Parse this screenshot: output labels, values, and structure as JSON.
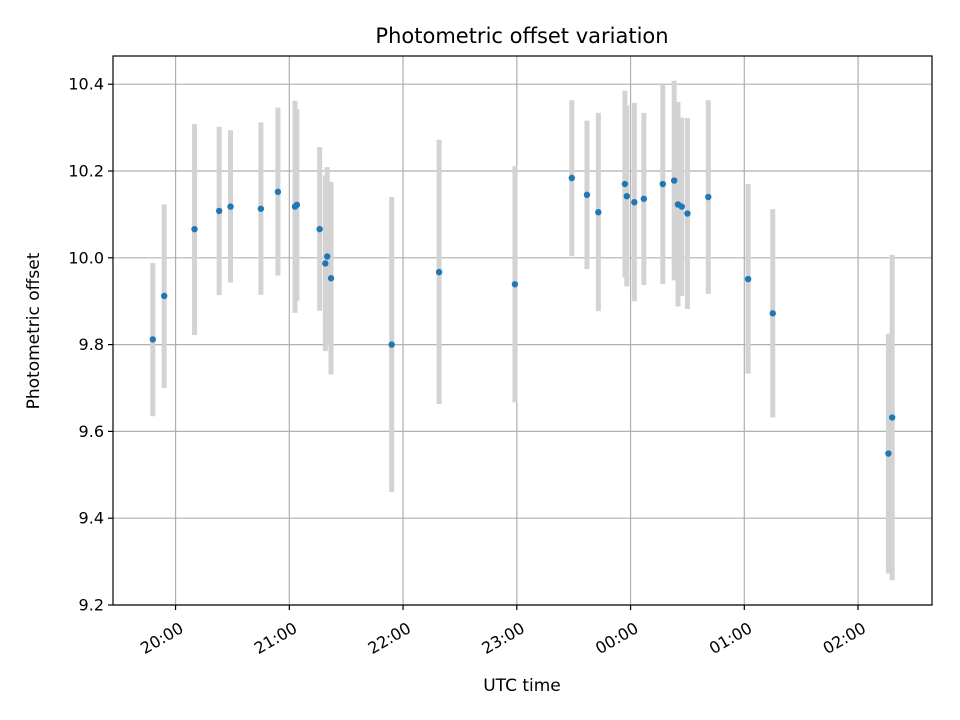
{
  "chart_data": {
    "type": "scatter",
    "title": "Photometric offset variation",
    "xlabel": "UTC time",
    "ylabel": "Photometric offset",
    "xlim": [
      "19:27",
      "26:39"
    ],
    "ylim": [
      9.2,
      10.465
    ],
    "grid": true,
    "x_ticks": [
      "20:00",
      "21:00",
      "22:00",
      "23:00",
      "00:00",
      "01:00",
      "02:00"
    ],
    "y_ticks": [
      "9.2",
      "9.4",
      "9.6",
      "9.8",
      "10.0",
      "10.2",
      "10.4"
    ],
    "marker_color": "#1f77b4",
    "errorbar_color": "#d3d3d3",
    "points": [
      {
        "t": "19:48",
        "y": 9.812,
        "lo": 9.635,
        "hi": 9.988
      },
      {
        "t": "19:54",
        "y": 9.912,
        "lo": 9.7,
        "hi": 10.123
      },
      {
        "t": "20:10",
        "y": 10.066,
        "lo": 9.822,
        "hi": 10.308
      },
      {
        "t": "20:23",
        "y": 10.108,
        "lo": 9.914,
        "hi": 10.302
      },
      {
        "t": "20:29",
        "y": 10.118,
        "lo": 9.943,
        "hi": 10.294
      },
      {
        "t": "20:45",
        "y": 10.113,
        "lo": 9.915,
        "hi": 10.312
      },
      {
        "t": "20:54",
        "y": 10.152,
        "lo": 9.959,
        "hi": 10.346
      },
      {
        "t": "21:03",
        "y": 10.118,
        "lo": 9.873,
        "hi": 10.362
      },
      {
        "t": "21:04",
        "y": 10.122,
        "lo": 9.901,
        "hi": 10.343
      },
      {
        "t": "21:16",
        "y": 10.066,
        "lo": 9.878,
        "hi": 10.255
      },
      {
        "t": "21:19",
        "y": 9.987,
        "lo": 9.785,
        "hi": 10.19
      },
      {
        "t": "21:20",
        "y": 10.003,
        "lo": 9.797,
        "hi": 10.209
      },
      {
        "t": "21:22",
        "y": 9.953,
        "lo": 9.731,
        "hi": 10.175
      },
      {
        "t": "21:54",
        "y": 9.8,
        "lo": 9.46,
        "hi": 10.14
      },
      {
        "t": "22:19",
        "y": 9.967,
        "lo": 9.663,
        "hi": 10.272
      },
      {
        "t": "22:59",
        "y": 9.939,
        "lo": 9.667,
        "hi": 10.211
      },
      {
        "t": "23:29",
        "y": 10.184,
        "lo": 10.004,
        "hi": 10.363
      },
      {
        "t": "23:37",
        "y": 10.145,
        "lo": 9.974,
        "hi": 10.316
      },
      {
        "t": "23:43",
        "y": 10.105,
        "lo": 9.877,
        "hi": 10.334
      },
      {
        "t": "23:57",
        "y": 10.17,
        "lo": 9.955,
        "hi": 10.385
      },
      {
        "t": "23:58",
        "y": 10.142,
        "lo": 9.934,
        "hi": 10.351
      },
      {
        "t": "24:02",
        "y": 10.128,
        "lo": 9.9,
        "hi": 10.357
      },
      {
        "t": "24:07",
        "y": 10.136,
        "lo": 9.937,
        "hi": 10.334
      },
      {
        "t": "24:17",
        "y": 10.17,
        "lo": 9.94,
        "hi": 10.4
      },
      {
        "t": "24:23",
        "y": 10.178,
        "lo": 9.948,
        "hi": 10.408
      },
      {
        "t": "24:25",
        "y": 10.123,
        "lo": 9.888,
        "hi": 10.359
      },
      {
        "t": "24:27",
        "y": 10.118,
        "lo": 9.912,
        "hi": 10.323
      },
      {
        "t": "24:30",
        "y": 10.102,
        "lo": 9.882,
        "hi": 10.322
      },
      {
        "t": "24:41",
        "y": 10.14,
        "lo": 9.917,
        "hi": 10.363
      },
      {
        "t": "25:02",
        "y": 9.951,
        "lo": 9.733,
        "hi": 10.17
      },
      {
        "t": "25:15",
        "y": 9.872,
        "lo": 9.632,
        "hi": 10.112
      },
      {
        "t": "26:16",
        "y": 9.549,
        "lo": 9.273,
        "hi": 9.825
      },
      {
        "t": "26:18",
        "y": 9.632,
        "lo": 9.257,
        "hi": 10.007
      }
    ]
  }
}
